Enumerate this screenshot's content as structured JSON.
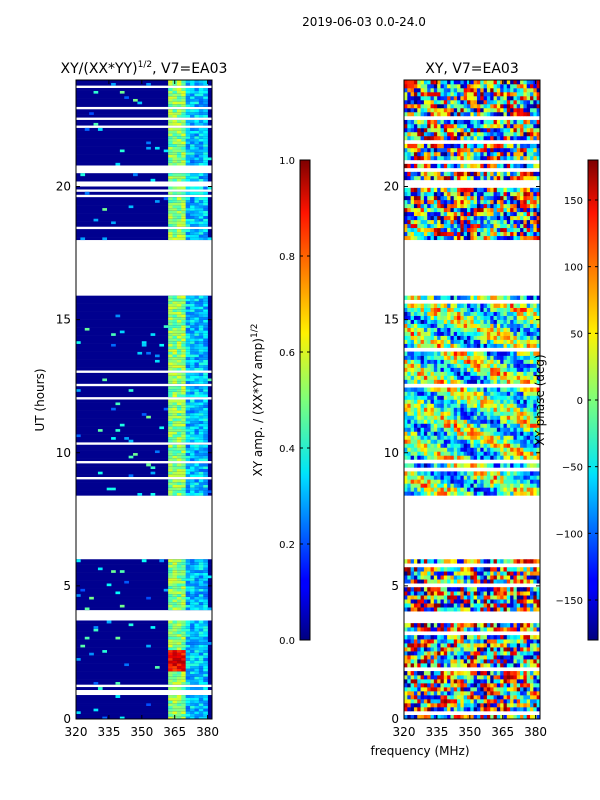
{
  "chart_data": {
    "type": "heatmap",
    "suptitle": "2019-06-03 0.0-24.0",
    "shared_xlabel": "frequency (MHz)",
    "panels": [
      {
        "id": "amp",
        "title_main": "XY/(XX*YY)",
        "title_sup": "1/2",
        "title_tail": ", V7=EA03",
        "ylabel": "UT (hours)",
        "xlim": [
          320,
          382
        ],
        "ylim": [
          0,
          24
        ],
        "xticks": [
          320,
          335,
          350,
          365,
          380
        ],
        "yticks": [
          0,
          5,
          10,
          15,
          20
        ],
        "data_bands_hours": [
          [
            0.0,
            3.7
          ],
          [
            4.1,
            6.0
          ],
          [
            8.4,
            12.5
          ],
          [
            12.6,
            15.9
          ],
          [
            18.0,
            20.0
          ],
          [
            20.2,
            20.5
          ],
          [
            20.7,
            24.0
          ]
        ],
        "bright_channel_mhz": [
          [
            362,
            365
          ],
          [
            366,
            369
          ],
          [
            371,
            373
          ],
          [
            375,
            380
          ]
        ],
        "hotspot": {
          "mhz": [
            362,
            369
          ],
          "ut": [
            1.8,
            2.6
          ],
          "value": 0.95
        }
      },
      {
        "id": "phase",
        "title_main": "XY, V7=EA03",
        "xlim": [
          320,
          382
        ],
        "ylim": [
          0,
          24
        ],
        "xticks": [
          320,
          335,
          350,
          365,
          380
        ],
        "yticks": [
          0,
          5,
          10,
          15,
          20
        ]
      }
    ],
    "colorbars": [
      {
        "id": "amp",
        "label_main": "XY amp. / (XX*YY amp)",
        "label_sup": "1/2",
        "range": [
          0.0,
          1.0
        ],
        "ticks": [
          "0.0",
          "0.2",
          "0.4",
          "0.6",
          "0.8",
          "1.0"
        ]
      },
      {
        "id": "phase",
        "label_main": "XY phase (deg)",
        "range": [
          -180,
          180
        ],
        "ticks": [
          "−150",
          "−100",
          "−50",
          "0",
          "50",
          "100",
          "150"
        ],
        "tick_values": [
          -150,
          -100,
          -50,
          0,
          50,
          100,
          150
        ]
      }
    ]
  }
}
